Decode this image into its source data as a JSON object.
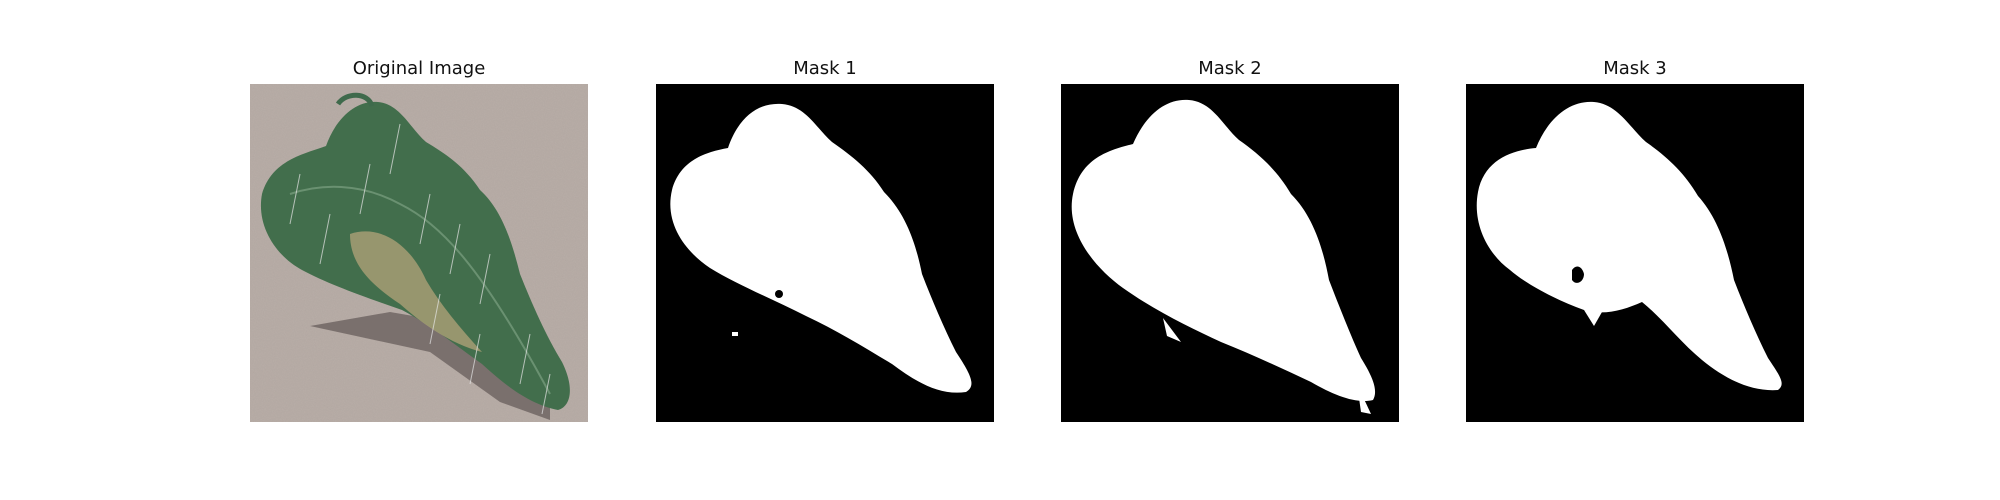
{
  "figure": {
    "panels": [
      {
        "title": "Original Image",
        "content": "photo-of-tomato-leaf"
      },
      {
        "title": "Mask 1",
        "content": "binary-segmentation-mask"
      },
      {
        "title": "Mask 2",
        "content": "binary-segmentation-mask"
      },
      {
        "title": "Mask 3",
        "content": "binary-segmentation-mask"
      }
    ]
  },
  "colors": {
    "background": "#ffffff",
    "mask_foreground": "#ffffff",
    "mask_background": "#000000",
    "ground": "#b7aca6",
    "leaf_dark": "#2f5a3a",
    "leaf_mid": "#4f7d58",
    "lesion": "#a9a074"
  }
}
